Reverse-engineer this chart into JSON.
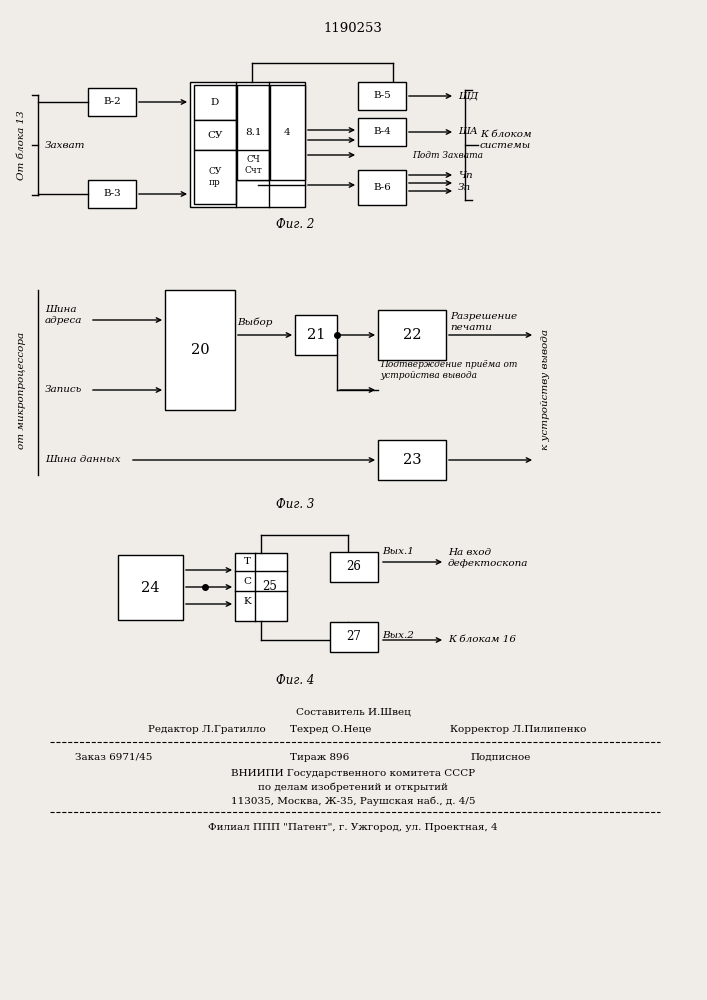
{
  "title": "1190253",
  "fig2_label": "Фиг. 2",
  "fig3_label": "Фиг. 3",
  "fig4_label": "Фиг. 4",
  "bg_color": "#f0ede8",
  "footer_text1": "Составитель И.Швец",
  "footer_editor": "Редактор Л.Гратилло",
  "footer_tehred": "Техред О.Неце",
  "footer_korrektor": "Корректор Л.Пилипенко",
  "footer_zakaz": "Заказ 6971/45",
  "footer_tirazh": "Тираж 896",
  "footer_podpisnoe": "Подписное",
  "footer_vniipи": "ВНИИПИ Государственного комитета СССР",
  "footer_po_delam": "по делам изобретений и открытий",
  "footer_address": "113035, Москва, Ж-35, Раушская наб., д. 4/5",
  "footer_filial": "Филиал ППП \"Патент\", г. Ужгород, ул. Проектная, 4"
}
